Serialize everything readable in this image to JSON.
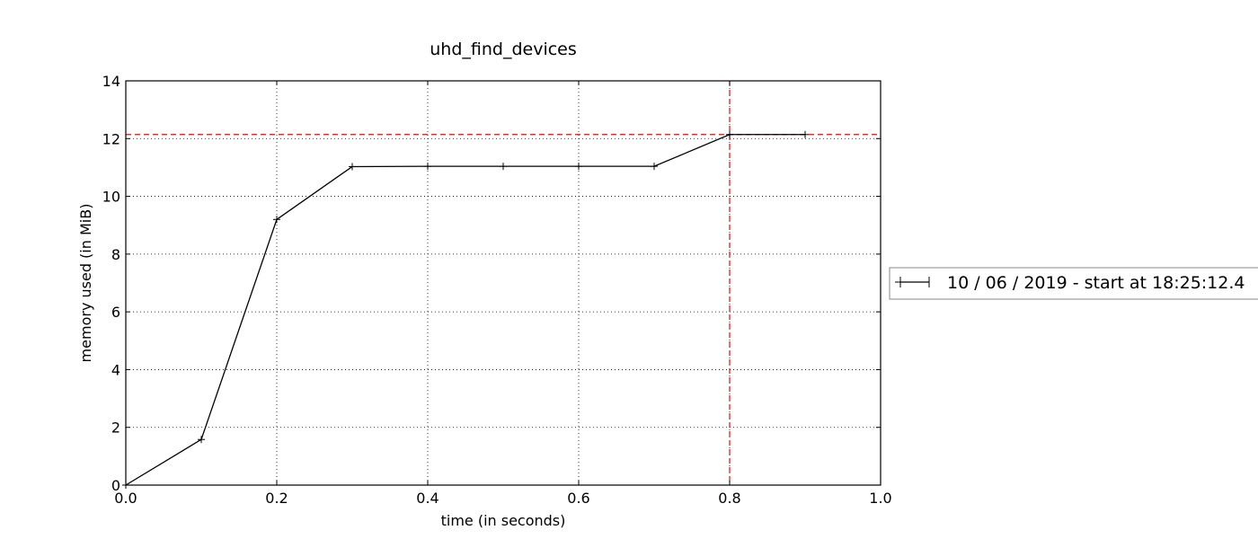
{
  "chart_data": {
    "type": "line",
    "title": "uhd_find_devices",
    "xlabel": "time (in seconds)",
    "ylabel": "memory used (in MiB)",
    "xlim": [
      0.0,
      1.0
    ],
    "ylim": [
      0,
      14
    ],
    "xticks": [
      "0.0",
      "0.2",
      "0.4",
      "0.6",
      "0.8",
      "1.0"
    ],
    "yticks": [
      "0",
      "2",
      "4",
      "6",
      "8",
      "10",
      "12",
      "14"
    ],
    "grid": true,
    "legend_position": "right-outside",
    "series": [
      {
        "name": "10 / 06 / 2019 - start at 18:25:12.4",
        "color": "#000000",
        "marker": "plus",
        "x": [
          0.0,
          0.1,
          0.2,
          0.3,
          0.4,
          0.5,
          0.6,
          0.7,
          0.8,
          0.9
        ],
        "y": [
          0.0,
          1.58,
          9.2,
          11.03,
          11.04,
          11.04,
          11.04,
          11.04,
          12.14,
          12.14
        ]
      }
    ],
    "reference_lines": [
      {
        "orientation": "horizontal",
        "value": 12.14,
        "color": "#ff0000",
        "style": "dashed"
      },
      {
        "orientation": "vertical",
        "value": 0.8,
        "color": "#ff0000",
        "style": "dashed"
      }
    ]
  }
}
